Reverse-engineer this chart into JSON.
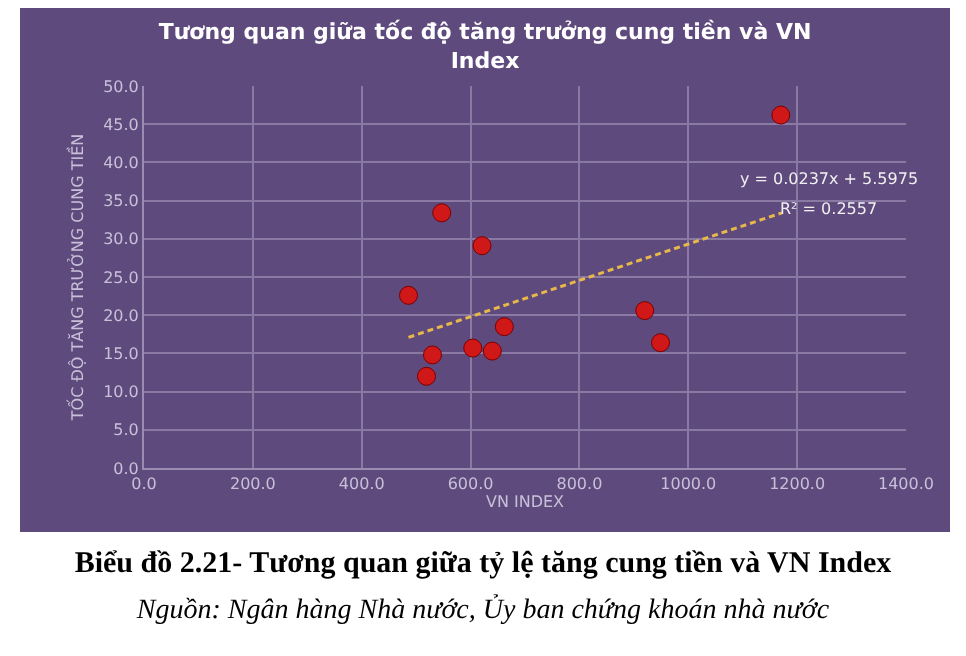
{
  "chart_data": {
    "type": "scatter",
    "title": "Tương quan giữa tốc độ tăng trưởng cung tiền và VN Index",
    "xlabel": "VN INDEX",
    "ylabel": "TỐC ĐỘ TĂNG TRƯỞNG CUNG TIỀN",
    "series": [
      {
        "type": "scatter",
        "color": "#d01818",
        "marker": "circle",
        "x": [
          1170,
          547,
          621,
          486,
          920,
          662,
          949,
          604,
          640,
          530,
          519
        ],
        "values": [
          46.2,
          33.4,
          29.1,
          22.6,
          20.6,
          18.5,
          16.4,
          15.7,
          15.3,
          14.8,
          12.0
        ]
      },
      {
        "type": "line",
        "color": "#e8b84a",
        "line_style": "dashed",
        "marker": "none",
        "x": [
          486,
          1172
        ],
        "values": [
          17.1,
          33.4
        ]
      }
    ],
    "xlim": [
      0,
      1400
    ],
    "xticks": [
      {
        "value": 0,
        "label": "0.0"
      },
      {
        "value": 200,
        "label": "200.0"
      },
      {
        "value": 400,
        "label": "400.0"
      },
      {
        "value": 600,
        "label": "600.0"
      },
      {
        "value": 800,
        "label": "800.0"
      },
      {
        "value": 1000,
        "label": "1000.0"
      },
      {
        "value": 1200,
        "label": "1200.0"
      },
      {
        "value": 1400,
        "label": "1400.0"
      }
    ],
    "ylim": [
      0,
      50
    ],
    "yticks": [
      {
        "value": 0,
        "label": "0.0"
      },
      {
        "value": 5,
        "label": "5.0"
      },
      {
        "value": 10,
        "label": "10.0"
      },
      {
        "value": 15,
        "label": "15.0"
      },
      {
        "value": 20,
        "label": "20.0"
      },
      {
        "value": 25,
        "label": "25.0"
      },
      {
        "value": 30,
        "label": "30.0"
      },
      {
        "value": 35,
        "label": "35.0"
      },
      {
        "value": 40,
        "label": "40.0"
      },
      {
        "value": 45,
        "label": "45.0"
      },
      {
        "value": 50,
        "label": "50.0"
      }
    ],
    "grid": true,
    "annotations": [
      "y = 0.0237x + 5.5975",
      "R² = 0.2557",
      "Biểu đồ 2.21- Tương quan giữa tỷ lệ tăng cung tiền và VN Index",
      "Nguồn: Ngân hàng Nhà nước, Ủy ban chứng khoán nhà nước"
    ]
  }
}
